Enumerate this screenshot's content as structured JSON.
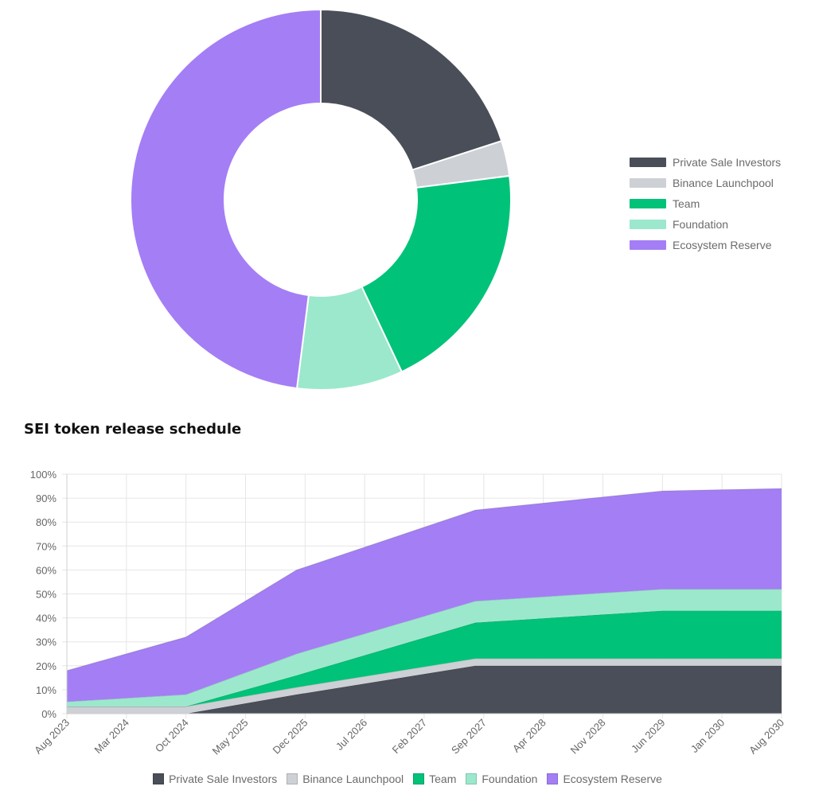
{
  "chart_data": [
    {
      "type": "pie",
      "variant": "doughnut",
      "labels": [
        "Private Sale Investors",
        "Binance Launchpool",
        "Team",
        "Foundation",
        "Ecosystem Reserve"
      ],
      "values": [
        20,
        3,
        20,
        9,
        48
      ],
      "colors": [
        "#4a4e58",
        "#cdd0d4",
        "#00c278",
        "#9ce8cc",
        "#a47ef5"
      ],
      "legend_position": "right"
    },
    {
      "type": "area",
      "stacked": true,
      "title": "SEI token release schedule",
      "x": [
        "Aug 2023",
        "Mar 2024",
        "Oct 2024",
        "May 2025",
        "Dec 2025",
        "Jul 2026",
        "Feb 2027",
        "Sep 2027",
        "Apr 2028",
        "Nov 2028",
        "Jun 2029",
        "Jan 2030",
        "Aug 2030"
      ],
      "y_ticks": [
        "0%",
        "10%",
        "20%",
        "30%",
        "40%",
        "50%",
        "60%",
        "70%",
        "80%",
        "90%",
        "100%"
      ],
      "ylim": [
        0,
        100
      ],
      "grid": true,
      "legend_position": "bottom",
      "series": [
        {
          "name": "Private Sale Investors",
          "color": "#4a4e58",
          "points": [
            [
              "Aug 2023",
              0
            ],
            [
              "Oct 2024",
              0
            ],
            [
              "Nov 2025",
              8
            ],
            [
              "Aug 2027",
              20
            ],
            [
              "Jun 2029",
              20
            ],
            [
              "Aug 2030",
              20
            ]
          ]
        },
        {
          "name": "Binance Launchpool",
          "color": "#cdd0d4",
          "points": [
            [
              "Aug 2023",
              3
            ],
            [
              "Oct 2024",
              3
            ],
            [
              "Nov 2025",
              3
            ],
            [
              "Aug 2027",
              3
            ],
            [
              "Jun 2029",
              3
            ],
            [
              "Aug 2030",
              3
            ]
          ]
        },
        {
          "name": "Team",
          "color": "#00c278",
          "points": [
            [
              "Aug 2023",
              0
            ],
            [
              "Oct 2024",
              0
            ],
            [
              "Nov 2025",
              5
            ],
            [
              "Aug 2027",
              15
            ],
            [
              "Jun 2029",
              20
            ],
            [
              "Aug 2030",
              20
            ]
          ]
        },
        {
          "name": "Foundation",
          "color": "#9ce8cc",
          "points": [
            [
              "Aug 2023",
              2
            ],
            [
              "Oct 2024",
              5
            ],
            [
              "Nov 2025",
              9
            ],
            [
              "Aug 2027",
              9
            ],
            [
              "Jun 2029",
              9
            ],
            [
              "Aug 2030",
              9
            ]
          ]
        },
        {
          "name": "Ecosystem Reserve",
          "color": "#a47ef5",
          "points": [
            [
              "Aug 2023",
              13
            ],
            [
              "Oct 2024",
              24
            ],
            [
              "Nov 2025",
              35
            ],
            [
              "Aug 2027",
              38
            ],
            [
              "Jun 2029",
              41
            ],
            [
              "Aug 2030",
              42
            ]
          ]
        }
      ]
    }
  ]
}
